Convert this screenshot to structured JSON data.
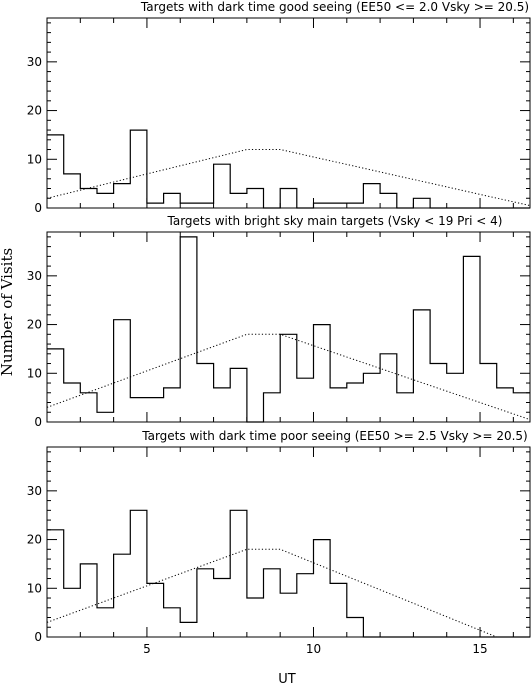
{
  "chart_data": {
    "type": "histogram",
    "shared": {
      "xlabel": "UT",
      "ylabel": "Number of Visits",
      "xlim": [
        2,
        16.5
      ],
      "ylim": [
        0,
        39
      ],
      "bin_start": 2,
      "bin_width": 0.5,
      "xticks_major": [
        5,
        10,
        15
      ],
      "xticks_minor_step": 1,
      "yticks": [
        0,
        10,
        20,
        30
      ],
      "grid": false,
      "line_styles": {
        "histogram": "solid step",
        "curve": "dotted"
      }
    },
    "panels": [
      {
        "title": "Targets with dark time good seeing (EE50 <= 2.0 Vsky >= 20.5)",
        "counts": [
          15,
          7,
          4,
          3,
          5,
          16,
          1,
          3,
          1,
          1,
          9,
          3,
          4,
          0,
          4,
          0,
          1,
          1,
          1,
          5,
          3,
          0,
          2,
          0,
          0,
          0,
          0,
          0,
          0
        ],
        "curve_x": [
          2,
          8,
          9,
          16.5
        ],
        "curve_y": [
          2,
          12,
          12,
          0.5
        ]
      },
      {
        "title": "Targets with bright sky main targets (Vsky < 19 Pri < 4)",
        "counts": [
          15,
          8,
          6,
          2,
          21,
          5,
          5,
          7,
          38,
          12,
          7,
          11,
          0,
          6,
          18,
          9,
          20,
          7,
          8,
          10,
          14,
          6,
          23,
          12,
          10,
          34,
          12,
          7,
          6
        ],
        "curve_x": [
          2,
          8,
          9,
          16.5
        ],
        "curve_y": [
          3,
          18,
          18,
          0.5
        ]
      },
      {
        "title": "Targets with dark time poor seeing (EE50 >= 2.5 Vsky >= 20.5)",
        "counts": [
          22,
          10,
          15,
          6,
          17,
          26,
          11,
          6,
          3,
          14,
          12,
          26,
          8,
          14,
          9,
          13,
          20,
          11,
          4,
          0,
          0,
          0,
          0,
          0,
          0,
          0,
          0,
          0,
          0
        ],
        "curve_x": [
          2,
          8,
          9,
          15.5
        ],
        "curve_y": [
          3,
          18,
          18,
          0
        ]
      }
    ]
  }
}
